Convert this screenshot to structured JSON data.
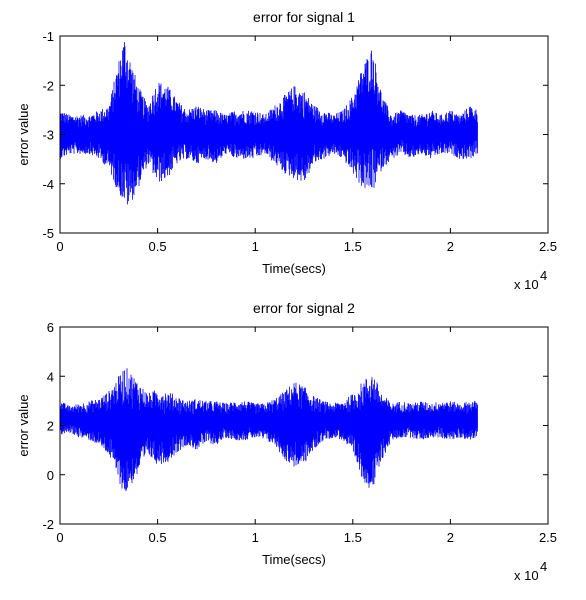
{
  "chart_data": [
    {
      "type": "line",
      "title": "error for signal 1",
      "xlabel": "Time(secs)",
      "ylabel": "error value",
      "x_multiplier": "x 10",
      "x_multiplier_exp": "4",
      "xlim": [
        0,
        2.5
      ],
      "ylim": [
        -5,
        -1
      ],
      "xticks": [
        0,
        0.5,
        1,
        1.5,
        2,
        2.5
      ],
      "xtick_labels": [
        "0",
        "0.5",
        "1",
        "1.5",
        "2",
        "2.5"
      ],
      "yticks": [
        -1,
        -2,
        -3,
        -4,
        -5
      ],
      "ytick_labels": [
        "-1",
        "-2",
        "-3",
        "-4",
        "-5"
      ],
      "grid": false,
      "color": "#0000ff",
      "series": [
        {
          "x": [
            0,
            0.05,
            0.1,
            0.15,
            0.2,
            0.25,
            0.3,
            0.33,
            0.35,
            0.4,
            0.45,
            0.5,
            0.55,
            0.6,
            0.65,
            0.7,
            0.75,
            0.8,
            0.85,
            0.9,
            0.95,
            1.0,
            1.05,
            1.1,
            1.15,
            1.2,
            1.25,
            1.3,
            1.35,
            1.4,
            1.45,
            1.5,
            1.55,
            1.6,
            1.65,
            1.7,
            1.75,
            1.8,
            1.85,
            1.9,
            1.95,
            2.0,
            2.05,
            2.1,
            2.14
          ],
          "upper": [
            -2.5,
            -2.6,
            -2.6,
            -2.6,
            -2.5,
            -2.4,
            -1.5,
            -1.0,
            -1.3,
            -2.0,
            -2.4,
            -1.9,
            -2.0,
            -2.3,
            -2.5,
            -2.4,
            -2.5,
            -2.5,
            -2.6,
            -2.5,
            -2.5,
            -2.5,
            -2.6,
            -2.4,
            -2.2,
            -2.0,
            -2.1,
            -2.4,
            -2.5,
            -2.6,
            -2.5,
            -2.2,
            -1.6,
            -1.2,
            -2.2,
            -2.6,
            -2.5,
            -2.6,
            -2.6,
            -2.5,
            -2.6,
            -2.5,
            -2.6,
            -2.4,
            -2.5
          ],
          "lower": [
            -3.5,
            -3.4,
            -3.4,
            -3.4,
            -3.5,
            -3.7,
            -4.2,
            -4.4,
            -4.5,
            -4.1,
            -3.6,
            -4.0,
            -3.9,
            -3.6,
            -3.5,
            -3.6,
            -3.5,
            -3.6,
            -3.4,
            -3.5,
            -3.5,
            -3.5,
            -3.4,
            -3.6,
            -3.8,
            -3.9,
            -4.0,
            -3.6,
            -3.5,
            -3.4,
            -3.5,
            -3.8,
            -4.1,
            -4.2,
            -3.7,
            -3.5,
            -3.4,
            -3.5,
            -3.4,
            -3.5,
            -3.4,
            -3.4,
            -3.5,
            -3.5,
            -3.4
          ]
        }
      ]
    },
    {
      "type": "line",
      "title": "error for signal 2",
      "xlabel": "Time(secs)",
      "ylabel": "error value",
      "x_multiplier": "x 10",
      "x_multiplier_exp": "4",
      "xlim": [
        0,
        2.5
      ],
      "ylim": [
        -2,
        6
      ],
      "xticks": [
        0,
        0.5,
        1,
        1.5,
        2,
        2.5
      ],
      "xtick_labels": [
        "0",
        "0.5",
        "1",
        "1.5",
        "2",
        "2.5"
      ],
      "yticks": [
        6,
        4,
        2,
        0,
        -2
      ],
      "ytick_labels": [
        "6",
        "4",
        "2",
        "0",
        "-2"
      ],
      "grid": false,
      "color": "#0000ff",
      "series": [
        {
          "x": [
            0,
            0.05,
            0.1,
            0.15,
            0.2,
            0.25,
            0.3,
            0.33,
            0.35,
            0.4,
            0.45,
            0.5,
            0.55,
            0.6,
            0.65,
            0.7,
            0.75,
            0.8,
            0.85,
            0.9,
            0.95,
            1.0,
            1.05,
            1.1,
            1.15,
            1.2,
            1.25,
            1.3,
            1.35,
            1.4,
            1.45,
            1.5,
            1.55,
            1.6,
            1.65,
            1.7,
            1.75,
            1.8,
            1.85,
            1.9,
            1.95,
            2.0,
            2.05,
            2.1,
            2.14
          ],
          "upper": [
            3.0,
            2.8,
            2.9,
            3.0,
            3.1,
            3.4,
            4.0,
            4.4,
            4.3,
            3.8,
            3.3,
            3.5,
            3.4,
            3.2,
            3.0,
            3.1,
            3.0,
            3.0,
            2.9,
            3.0,
            3.0,
            2.9,
            2.9,
            3.1,
            3.4,
            3.8,
            3.6,
            3.2,
            3.0,
            2.9,
            3.0,
            3.3,
            3.8,
            4.2,
            3.3,
            2.9,
            3.0,
            2.9,
            3.0,
            2.9,
            3.0,
            3.0,
            2.9,
            3.0,
            3.0
          ],
          "lower": [
            1.6,
            1.7,
            1.5,
            1.4,
            1.2,
            0.8,
            -0.2,
            -0.9,
            -0.6,
            0.0,
            0.8,
            0.4,
            0.5,
            0.9,
            1.2,
            1.0,
            1.3,
            1.2,
            1.5,
            1.4,
            1.4,
            1.5,
            1.4,
            1.2,
            0.6,
            0.3,
            0.4,
            1.0,
            1.4,
            1.5,
            1.4,
            0.8,
            -0.2,
            -0.7,
            0.6,
            1.4,
            1.5,
            1.5,
            1.4,
            1.5,
            1.5,
            1.4,
            1.5,
            1.4,
            1.5
          ]
        }
      ]
    }
  ]
}
